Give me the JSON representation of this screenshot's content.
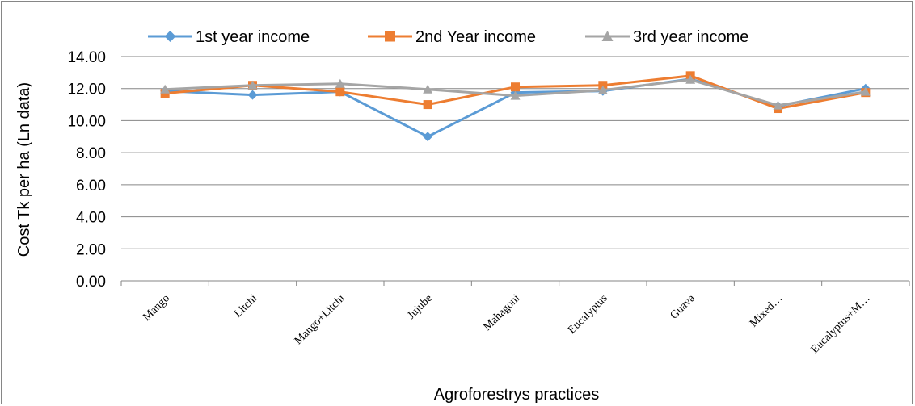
{
  "chart_data": {
    "type": "line",
    "title": "",
    "xlabel": "Agroforestrys practices",
    "ylabel": "Cost Tk per ha (Ln data)",
    "categories": [
      "Mango",
      "Litchi",
      "Mango+Litchi",
      "Jujube",
      "Mahagoni",
      "Eucalyptus",
      "Guava",
      "Mixed…",
      "Eucalyptus+M…"
    ],
    "ylim": [
      0,
      14
    ],
    "yticks": [
      "0.00",
      "2.00",
      "4.00",
      "6.00",
      "8.00",
      "10.00",
      "12.00",
      "14.00"
    ],
    "grid": true,
    "legend_position": "top",
    "series": [
      {
        "name": "1st year income",
        "color": "#5B9BD5",
        "marker": "diamond",
        "values": [
          11.85,
          11.6,
          11.8,
          9.0,
          11.75,
          11.85,
          12.6,
          10.9,
          12.0
        ]
      },
      {
        "name": "2nd Year income",
        "color": "#ED7D31",
        "marker": "square",
        "values": [
          11.7,
          12.2,
          11.8,
          11.0,
          12.1,
          12.2,
          12.8,
          10.75,
          11.75
        ]
      },
      {
        "name": "3rd year income",
        "color": "#A5A5A5",
        "marker": "triangle",
        "values": [
          11.95,
          12.2,
          12.3,
          11.95,
          11.55,
          11.9,
          12.55,
          10.95,
          11.8
        ]
      }
    ]
  }
}
